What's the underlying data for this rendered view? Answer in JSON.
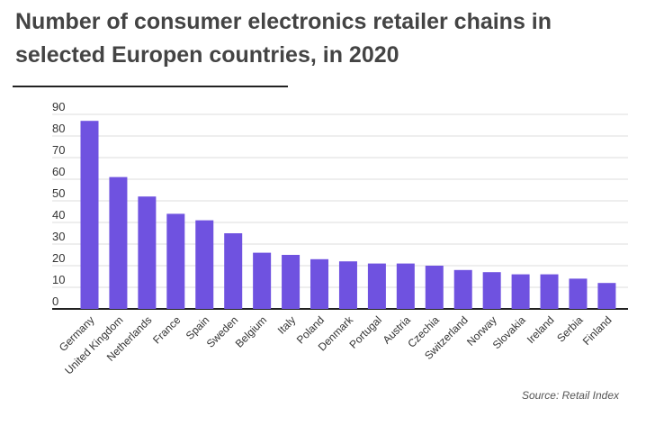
{
  "chart_data": {
    "type": "bar",
    "title": "Number of consumer electronics retailer chains in selected Europen countries, in 2020",
    "categories": [
      "Germany",
      "United Kingdom",
      "Netherlands",
      "France",
      "Spain",
      "Sweden",
      "Belgium",
      "Italy",
      "Poland",
      "Denmark",
      "Portugal",
      "Austria",
      "Czechia",
      "Switzerland",
      "Norway",
      "Slovakia",
      "Ireland",
      "Serbia",
      "Finland"
    ],
    "values": [
      87,
      61,
      52,
      44,
      41,
      35,
      26,
      25,
      23,
      22,
      21,
      21,
      20,
      18,
      17,
      16,
      16,
      14,
      12
    ],
    "ylim": [
      0,
      90
    ],
    "yticks": [
      0,
      10,
      20,
      30,
      40,
      50,
      60,
      70,
      80,
      90
    ],
    "grid": true,
    "bar_color": "#6f52e0",
    "source": "Source: Retail Index"
  }
}
